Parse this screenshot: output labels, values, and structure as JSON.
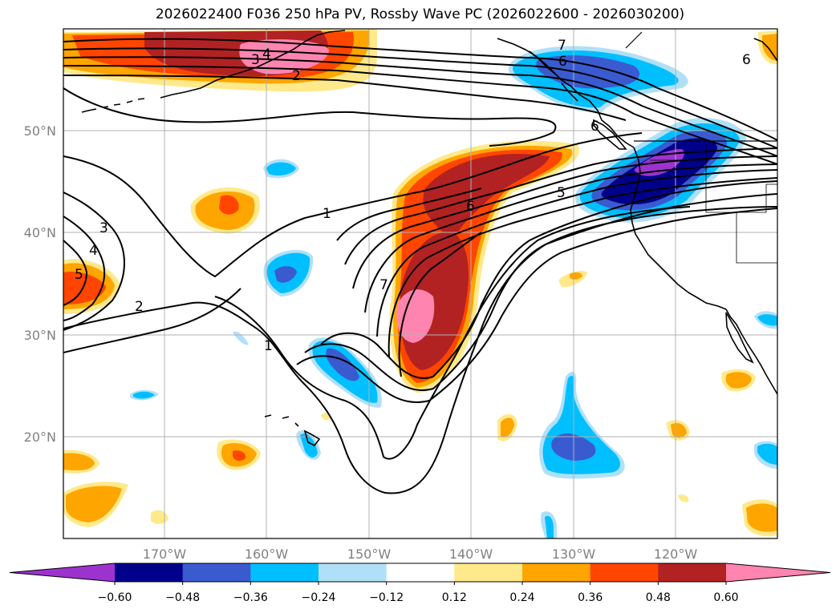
{
  "title": "2026022400 F036 250 hPa PV, Rossby Wave PC (2026022600 - 2026030200)",
  "lat_labels": [
    "50°N",
    "40°N",
    "30°N",
    "20°N"
  ],
  "lon_labels": [
    "170°W",
    "160°W",
    "150°W",
    "140°W",
    "130°W",
    "120°W"
  ],
  "colorbar": {
    "ticks": [
      "−0.60",
      "−0.48",
      "−0.36",
      "−0.24",
      "−0.12",
      "0.12",
      "0.24",
      "0.36",
      "0.48",
      "0.60"
    ],
    "colors": [
      "#9c33cf",
      "#00008b",
      "#3a5bd0",
      "#00bfff",
      "#b0e0f8",
      "#ffffff",
      "#ffe98a",
      "#ffa500",
      "#ff4500",
      "#b22222",
      "#ff85b0"
    ]
  },
  "contour_labels": [
    "3",
    "4",
    "2",
    "7",
    "6",
    "6",
    "6",
    "1",
    "3",
    "4",
    "5",
    "2",
    "1",
    "7",
    "6",
    "5"
  ]
}
